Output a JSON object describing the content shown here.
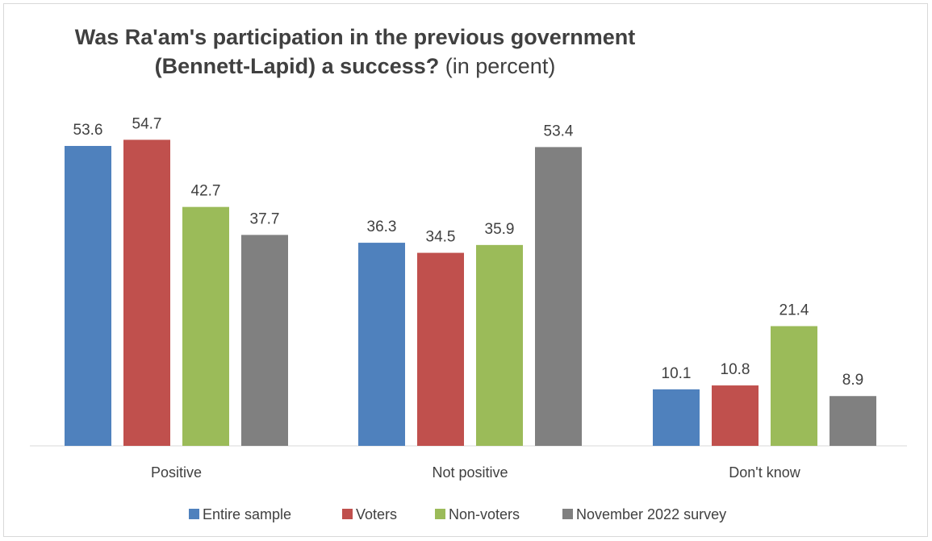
{
  "chart_data": {
    "type": "bar",
    "title_line1": "Was Ra'am's participation in the previous government",
    "title_line2_bold": "(Bennett-Lapid) a success?",
    "title_line2_rest": " (in percent)",
    "categories": [
      "Positive",
      "Not positive",
      "Don't know"
    ],
    "series": [
      {
        "name": "Entire sample",
        "color": "#4f81bd",
        "values": [
          53.6,
          36.3,
          10.1
        ]
      },
      {
        "name": "Voters",
        "color": "#c0504d",
        "values": [
          54.7,
          34.5,
          10.8
        ]
      },
      {
        "name": "Non-voters",
        "color": "#9bbb59",
        "values": [
          42.7,
          35.9,
          21.4
        ]
      },
      {
        "name": "November 2022 survey",
        "color": "#808080",
        "values": [
          37.7,
          53.4,
          8.9
        ]
      }
    ],
    "ylim": [
      0,
      60
    ],
    "grid": false,
    "legend_position": "bottom"
  }
}
